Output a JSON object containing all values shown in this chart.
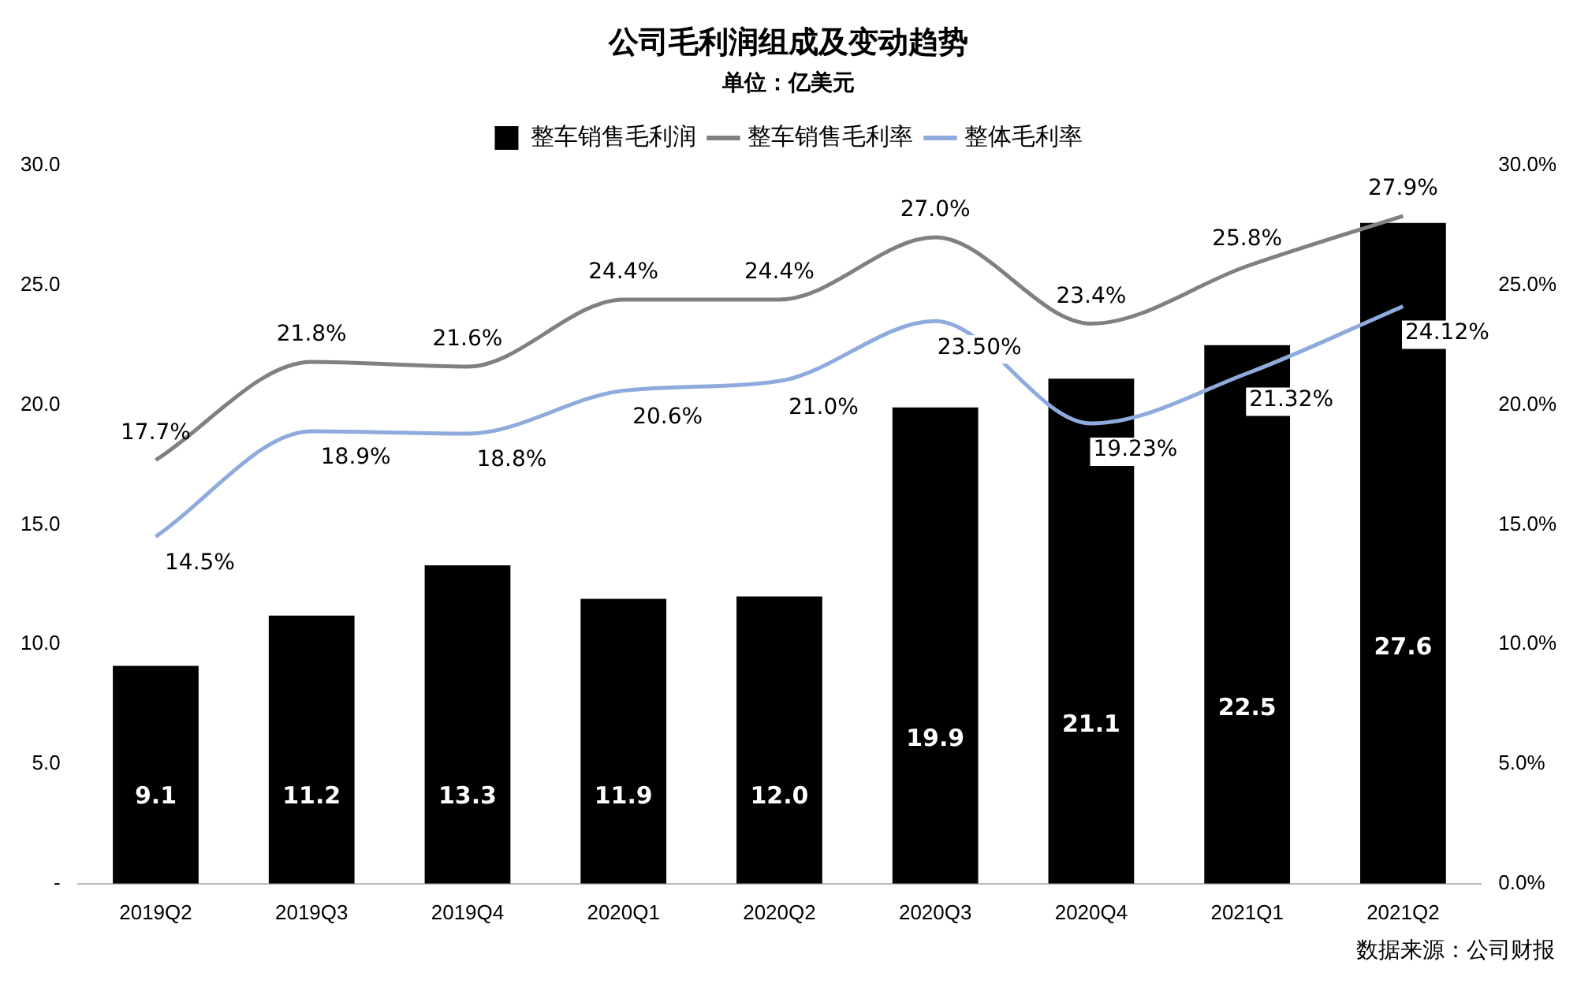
{
  "chart_data": {
    "type": "bar",
    "title": "公司毛利润组成及变动趋势",
    "subtitle": "单位：亿美元",
    "categories": [
      "2019Q2",
      "2019Q3",
      "2019Q4",
      "2020Q1",
      "2020Q2",
      "2020Q3",
      "2020Q4",
      "2021Q1",
      "2021Q2"
    ],
    "series": [
      {
        "name": "整车销售毛利润",
        "color": "#000000",
        "values": [
          9.1,
          11.2,
          13.3,
          11.9,
          12.0,
          19.9,
          21.1,
          22.5,
          27.6
        ],
        "value_labels": [
          "9.1",
          "11.2",
          "13.3",
          "11.9",
          "12.0",
          "19.9",
          "21.1",
          "22.5",
          "27.6"
        ]
      },
      {
        "name": "整车销售毛利率",
        "type": "line",
        "axis": "y2",
        "color": "#808080",
        "values": [
          17.7,
          21.8,
          21.6,
          24.4,
          24.4,
          27.0,
          23.4,
          25.8,
          27.9
        ],
        "value_labels": [
          "17.7%",
          "21.8%",
          "21.6%",
          "24.4%",
          "24.4%",
          "27.0%",
          "23.4%",
          "25.8%",
          "27.9%"
        ]
      },
      {
        "name": "整体毛利率",
        "type": "line",
        "axis": "y2",
        "color": "#8faadc",
        "values": [
          14.5,
          18.9,
          18.8,
          20.6,
          21.0,
          23.5,
          19.23,
          21.32,
          24.12
        ],
        "value_labels": [
          "14.5%",
          "18.9%",
          "18.8%",
          "20.6%",
          "21.0%",
          "23.50%",
          "19.23%",
          "21.32%",
          "24.12%"
        ]
      }
    ],
    "ylim": [
      0,
      30
    ],
    "yticks": [
      {
        "value": 0,
        "label": "-"
      },
      {
        "value": 5,
        "label": "5.0"
      },
      {
        "value": 10,
        "label": "10.0"
      },
      {
        "value": 15,
        "label": "15.0"
      },
      {
        "value": 20,
        "label": "20.0"
      },
      {
        "value": 25,
        "label": "25.0"
      },
      {
        "value": 30,
        "label": "30.0"
      }
    ],
    "y2lim": [
      0,
      30
    ],
    "y2ticks": [
      {
        "value": 0,
        "label": "0.0%"
      },
      {
        "value": 5,
        "label": "5.0%"
      },
      {
        "value": 10,
        "label": "10.0%"
      },
      {
        "value": 15,
        "label": "15.0%"
      },
      {
        "value": 20,
        "label": "20.0%"
      },
      {
        "value": 25,
        "label": "25.0%"
      },
      {
        "value": 30,
        "label": "30.0%"
      }
    ],
    "legend": "top",
    "grid": false,
    "marker": "none",
    "annotations": [
      "数据来源：公司财报"
    ]
  }
}
